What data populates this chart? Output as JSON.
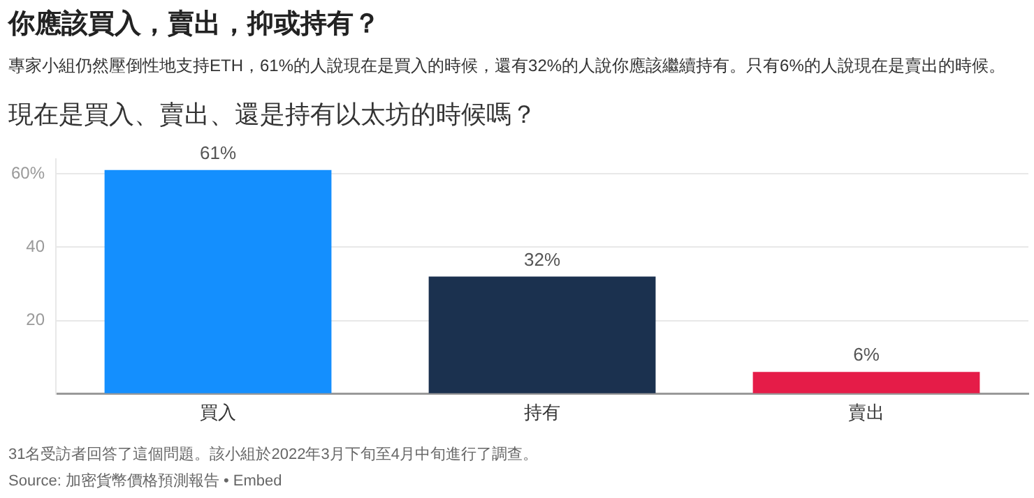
{
  "chart_data": {
    "type": "bar",
    "title": "你應該買入，賣出，抑或持有？",
    "subtitle": "專家小組仍然壓倒性地支持ETH，61%的人說現在是買入的時候，還有32%的人說你應該繼續持有。只有6%的人說現在是賣出的時候。",
    "annotations": [
      "現在是買入、賣出、還是持有以太坊的時候嗎？",
      "31名受訪者回答了這個問題。該小組於2022年3月下旬至4月中旬進行了調查。",
      "Source: 加密貨幣價格預測報告 • Embed"
    ],
    "categories": [
      "買入",
      "持有",
      "賣出"
    ],
    "values": [
      61,
      32,
      6
    ],
    "colors": [
      "#148ffe",
      "#1b314f",
      "#e51c48"
    ],
    "value_labels": [
      "61%",
      "32%",
      "6%"
    ],
    "ylim": [
      0,
      64
    ],
    "yticks": [
      {
        "value": 0,
        "label": null
      },
      20,
      40,
      {
        "value": 60,
        "label": "60%"
      }
    ],
    "grid": "y",
    "legend": false
  }
}
